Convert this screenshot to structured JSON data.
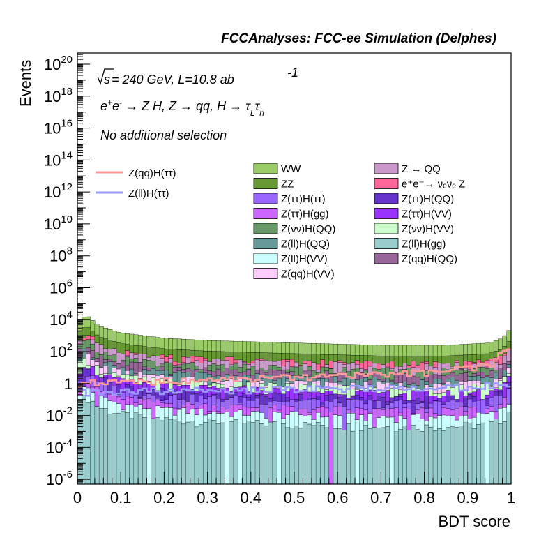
{
  "header": "FCCAnalyses: FCC-ee Simulation (Delphes)",
  "annotations": {
    "line1_sqrt": "s",
    "line1_rest": " = 240 GeV, L=10.8 ab",
    "line1_sup": "-1",
    "line2": [
      "e",
      "+",
      "e",
      "-",
      " → Z H, Z → qq, H → τ",
      "L",
      "τ",
      "h"
    ],
    "line3": "No additional selection"
  },
  "chart_data": {
    "type": "histogram-stack",
    "xlabel": "BDT score",
    "ylabel": "Events",
    "xlim": [
      0,
      1
    ],
    "ylim_log10": [
      -6.3,
      20.7
    ],
    "y_scale": "log",
    "xticks": [
      "0",
      "0.1",
      "0.2",
      "0.3",
      "0.4",
      "0.5",
      "0.6",
      "0.7",
      "0.8",
      "0.9",
      "1"
    ],
    "yticks": [
      {
        "base": "10",
        "exp": "-6",
        "log": -6
      },
      {
        "base": "10",
        "exp": "-4",
        "log": -4
      },
      {
        "base": "10",
        "exp": "-2",
        "log": -2
      },
      {
        "base": "1",
        "exp": "",
        "log": 0
      },
      {
        "base": "10",
        "exp": "2",
        "log": 2
      },
      {
        "base": "10",
        "exp": "4",
        "log": 4
      },
      {
        "base": "10",
        "exp": "6",
        "log": 6
      },
      {
        "base": "10",
        "exp": "8",
        "log": 8
      },
      {
        "base": "10",
        "exp": "10",
        "log": 10
      },
      {
        "base": "10",
        "exp": "12",
        "log": 12
      },
      {
        "base": "10",
        "exp": "14",
        "log": 14
      },
      {
        "base": "10",
        "exp": "16",
        "log": 16
      },
      {
        "base": "10",
        "exp": "18",
        "log": 18
      },
      {
        "base": "10",
        "exp": "20",
        "log": 20
      }
    ],
    "stack_top_profile": {
      "x": [
        0.0,
        0.02,
        0.05,
        0.1,
        0.2,
        0.3,
        0.5,
        0.7,
        0.85,
        0.95,
        0.98,
        1.0
      ],
      "y": [
        6000,
        20000,
        4000,
        1500,
        700,
        500,
        350,
        250,
        250,
        350,
        700,
        3000
      ]
    },
    "backgrounds": [
      {
        "name": "Z(ll)H(gg)",
        "color": "#99CCCC",
        "level": 0.005
      },
      {
        "name": "Z(ll)H(VV)",
        "color": "#CCFFFF",
        "level": 0.02
      },
      {
        "name": "Z(ττ)H(gg)",
        "color": "#CC66FF",
        "level": 0.05
      },
      {
        "name": "Z(ττ)H(ττ)",
        "color": "#9966FF",
        "level": 0.15
      },
      {
        "name": "Z(ττ)H(QQ)",
        "color": "#6633CC",
        "level": 0.3
      },
      {
        "name": "Z(ττ)H(VV)",
        "color": "#9933FF",
        "level": 0.6
      },
      {
        "name": "Z(νν)H(VV)",
        "color": "#CCFFCC",
        "level": 1.2
      },
      {
        "name": "Z(qq)H(VV)",
        "color": "#FFCCFF",
        "level": 2
      },
      {
        "name": "Z(ll)H(QQ)",
        "color": "#669999",
        "level": 4
      },
      {
        "name": "Z(qq)H(QQ)",
        "color": "#996699",
        "level": 8
      },
      {
        "name": "Z(νν)H(QQ)",
        "color": "#669966",
        "level": 15
      },
      {
        "name": "Z → QQ",
        "color": "#CC99CC",
        "level": 30
      },
      {
        "name": "e⁺e⁻→ νₑνₑ Z",
        "color": "#FF6699",
        "level": 40
      },
      {
        "name": "ZZ",
        "color": "#669933",
        "level": 150
      },
      {
        "name": "WW",
        "color": "#99CC66",
        "level": 700
      }
    ],
    "signals": [
      {
        "name": "Z(qq)H(ττ)",
        "color": "#FF9999",
        "x": [
          0,
          0.2,
          0.4,
          0.6,
          0.8,
          0.95,
          1.0
        ],
        "y": [
          1,
          1.5,
          2,
          3,
          5,
          15,
          300
        ]
      },
      {
        "name": "Z(ll)H(ττ)",
        "color": "#9999FF",
        "x": [
          0,
          0.3,
          0.6,
          0.9,
          1.0
        ],
        "y": [
          0.3,
          0.4,
          0.5,
          0.6,
          1
        ]
      }
    ],
    "legend_order": {
      "signal": [
        "Z(qq)H(ττ)",
        "Z(ll)H(ττ)"
      ],
      "col1": [
        "WW",
        "ZZ",
        "Z(ττ)H(ττ)",
        "Z(ττ)H(gg)",
        "Z(νν)H(QQ)",
        "Z(ll)H(QQ)",
        "Z(ll)H(VV)",
        "Z(qq)H(VV)"
      ],
      "col2": [
        "Z → QQ",
        "e⁺e⁻→ νₑνₑ Z",
        "Z(ττ)H(QQ)",
        "Z(ττ)H(VV)",
        "Z(νν)H(VV)",
        "Z(ll)H(gg)",
        "Z(qq)H(QQ)"
      ]
    },
    "legend": {
      "signal": [
        {
          "label": "Z(qq)H(ττ)",
          "color": "#FF9999"
        },
        {
          "label": "Z(ll)H(ττ)",
          "color": "#9999FF"
        }
      ],
      "col1": [
        {
          "label": "WW",
          "color": "#99CC66"
        },
        {
          "label": "ZZ",
          "color": "#669933"
        },
        {
          "label": "Z(ττ)H(ττ)",
          "color": "#9966FF"
        },
        {
          "label": "Z(ττ)H(gg)",
          "color": "#CC66FF"
        },
        {
          "label": "Z(νν)H(QQ)",
          "color": "#669966"
        },
        {
          "label": "Z(ll)H(QQ)",
          "color": "#669999"
        },
        {
          "label": "Z(ll)H(VV)",
          "color": "#CCFFFF"
        },
        {
          "label": "Z(qq)H(VV)",
          "color": "#FFCCFF"
        }
      ],
      "col2": [
        {
          "label": "Z → QQ",
          "color": "#CC99CC"
        },
        {
          "label": "e⁺e⁻→ νₑνₑ Z",
          "color": "#FF6699"
        },
        {
          "label": "Z(ττ)H(QQ)",
          "color": "#6633CC"
        },
        {
          "label": "Z(ττ)H(VV)",
          "color": "#9933FF"
        },
        {
          "label": "Z(νν)H(VV)",
          "color": "#CCFFCC"
        },
        {
          "label": "Z(ll)H(gg)",
          "color": "#99CCCC"
        },
        {
          "label": "Z(qq)H(QQ)",
          "color": "#996699"
        }
      ]
    }
  }
}
